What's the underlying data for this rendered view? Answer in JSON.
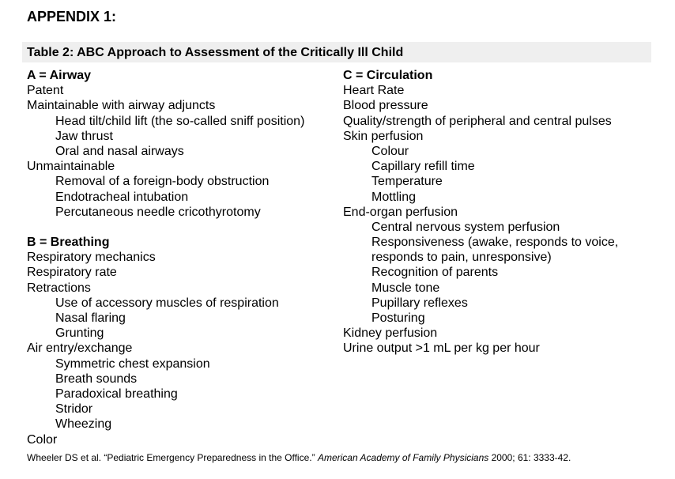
{
  "heading": "APPENDIX 1:",
  "table_title": "Table 2: ABC Approach to Assessment of the Critically Ill Child",
  "airway": {
    "title": "A = Airway",
    "lines": [
      {
        "text": "Patent",
        "indent": false
      },
      {
        "text": "Maintainable with airway adjuncts",
        "indent": false
      },
      {
        "text": "Head tilt/child lift (the so-called sniff position)",
        "indent": true
      },
      {
        "text": "Jaw thrust",
        "indent": true
      },
      {
        "text": "Oral and nasal airways",
        "indent": true
      },
      {
        "text": "Unmaintainable",
        "indent": false
      },
      {
        "text": "Removal of a foreign-body obstruction",
        "indent": true
      },
      {
        "text": "Endotracheal intubation",
        "indent": true
      },
      {
        "text": "Percutaneous needle cricothyrotomy",
        "indent": true
      }
    ]
  },
  "breathing": {
    "title": "B = Breathing",
    "lines": [
      {
        "text": "Respiratory mechanics",
        "indent": false
      },
      {
        "text": "Respiratory rate",
        "indent": false
      },
      {
        "text": "Retractions",
        "indent": false
      },
      {
        "text": "Use of accessory muscles of respiration",
        "indent": true
      },
      {
        "text": "Nasal flaring",
        "indent": true
      },
      {
        "text": "Grunting",
        "indent": true
      },
      {
        "text": "Air entry/exchange",
        "indent": false
      },
      {
        "text": "Symmetric chest expansion",
        "indent": true
      },
      {
        "text": "Breath sounds",
        "indent": true
      },
      {
        "text": "Paradoxical breathing",
        "indent": true
      },
      {
        "text": "Stridor",
        "indent": true
      },
      {
        "text": "Wheezing",
        "indent": true
      },
      {
        "text": "Color",
        "indent": false
      }
    ]
  },
  "circulation": {
    "title": "C = Circulation",
    "lines": [
      {
        "text": "Heart Rate",
        "indent": false
      },
      {
        "text": "Blood pressure",
        "indent": false
      },
      {
        "text": "Quality/strength of peripheral and central pulses",
        "indent": false
      },
      {
        "text": "Skin perfusion",
        "indent": false
      },
      {
        "text": "Colour",
        "indent": true
      },
      {
        "text": "Capillary refill time",
        "indent": true
      },
      {
        "text": "Temperature",
        "indent": true
      },
      {
        "text": "Mottling",
        "indent": true
      },
      {
        "text": "End-organ perfusion",
        "indent": false
      },
      {
        "text": "Central nervous system perfusion",
        "indent": true
      },
      {
        "text": "Responsiveness (awake, responds to voice,",
        "indent": true
      },
      {
        "text": "responds to pain, unresponsive)",
        "indent": true
      },
      {
        "text": "Recognition of parents",
        "indent": true
      },
      {
        "text": "Muscle tone",
        "indent": true
      },
      {
        "text": "Pupillary reflexes",
        "indent": true
      },
      {
        "text": "Posturing",
        "indent": true
      },
      {
        "text": "Kidney perfusion",
        "indent": false
      },
      {
        "text": "Urine output >1 mL per kg per hour",
        "indent": false
      }
    ]
  },
  "citation": {
    "prefix": "Wheeler DS et al. “Pediatric Emergency Preparedness in the Office.” ",
    "journal": "American Academy of Family Physicians",
    "suffix": " 2000; 61: 3333-42."
  }
}
